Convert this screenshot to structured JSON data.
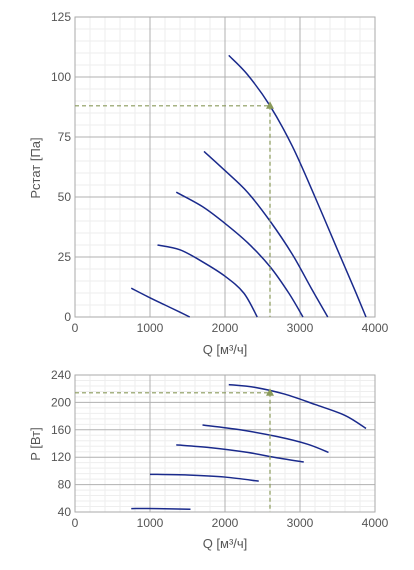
{
  "colors": {
    "curve": "#1a2a8c",
    "marker": "#8a9a5b",
    "reference_line": "#8a9a5b",
    "grid_minor": "#eeeeee",
    "grid_major": "#b0b0b0",
    "text": "#555555"
  },
  "chart_data": [
    {
      "type": "line",
      "ylabel": "Рстат [Па]",
      "xlabel": "Q [м³/ч]",
      "xlim": [
        0,
        4000
      ],
      "ylim": [
        0,
        125
      ],
      "x_ticks": [
        "0",
        "1000",
        "2000",
        "3000",
        "4000"
      ],
      "y_ticks": [
        "0",
        "25",
        "50",
        "75",
        "100",
        "125"
      ],
      "x_tick_values": [
        0,
        1000,
        2000,
        3000,
        4000
      ],
      "y_tick_values": [
        0,
        25,
        50,
        75,
        100,
        125
      ],
      "grid": true,
      "series": [
        {
          "points": [
            [
              750,
              12
            ],
            [
              1000,
              8
            ],
            [
              1200,
              5
            ],
            [
              1400,
              2
            ],
            [
              1530,
              0
            ]
          ]
        },
        {
          "points": [
            [
              1100,
              30
            ],
            [
              1400,
              28
            ],
            [
              1700,
              23
            ],
            [
              2000,
              17
            ],
            [
              2250,
              10
            ],
            [
              2430,
              0
            ]
          ]
        },
        {
          "points": [
            [
              1350,
              52
            ],
            [
              1700,
              46
            ],
            [
              2000,
              39
            ],
            [
              2300,
              31
            ],
            [
              2600,
              21
            ],
            [
              2850,
              10
            ],
            [
              3040,
              0
            ]
          ]
        },
        {
          "points": [
            [
              1720,
              69
            ],
            [
              2000,
              61
            ],
            [
              2300,
              52
            ],
            [
              2600,
              40
            ],
            [
              2900,
              26
            ],
            [
              3150,
              12
            ],
            [
              3370,
              0
            ]
          ]
        },
        {
          "points": [
            [
              2050,
              109
            ],
            [
              2300,
              101
            ],
            [
              2600,
              88
            ],
            [
              2900,
              71
            ],
            [
              3200,
              50
            ],
            [
              3500,
              28
            ],
            [
              3720,
              12
            ],
            [
              3880,
              0
            ]
          ]
        }
      ],
      "operating_point": {
        "x": 2600,
        "y": 88
      }
    },
    {
      "type": "line",
      "ylabel": "P [Вт]",
      "xlabel": "Q [м³/ч]",
      "xlim": [
        0,
        4000
      ],
      "ylim": [
        40,
        240
      ],
      "x_ticks": [
        "0",
        "1000",
        "2000",
        "3000",
        "4000"
      ],
      "y_ticks": [
        "40",
        "80",
        "120",
        "160",
        "200",
        "240"
      ],
      "x_tick_values": [
        0,
        1000,
        2000,
        3000,
        4000
      ],
      "y_tick_values": [
        40,
        80,
        120,
        160,
        200,
        240
      ],
      "grid": true,
      "series": [
        {
          "points": [
            [
              750,
              45
            ],
            [
              1100,
              45
            ],
            [
              1540,
              44
            ]
          ]
        },
        {
          "points": [
            [
              1000,
              95
            ],
            [
              1500,
              94
            ],
            [
              2000,
              91
            ],
            [
              2450,
              85
            ]
          ]
        },
        {
          "points": [
            [
              1350,
              138
            ],
            [
              1800,
              134
            ],
            [
              2300,
              127
            ],
            [
              2700,
              119
            ],
            [
              3050,
              113
            ]
          ]
        },
        {
          "points": [
            [
              1700,
              167
            ],
            [
              2200,
              160
            ],
            [
              2700,
              150
            ],
            [
              3100,
              139
            ],
            [
              3380,
              127
            ]
          ]
        },
        {
          "points": [
            [
              2050,
              226
            ],
            [
              2400,
              222
            ],
            [
              2800,
              212
            ],
            [
              3200,
              197
            ],
            [
              3600,
              181
            ],
            [
              3880,
              162
            ]
          ]
        }
      ],
      "operating_point": {
        "x": 2600,
        "y": 214
      }
    }
  ]
}
